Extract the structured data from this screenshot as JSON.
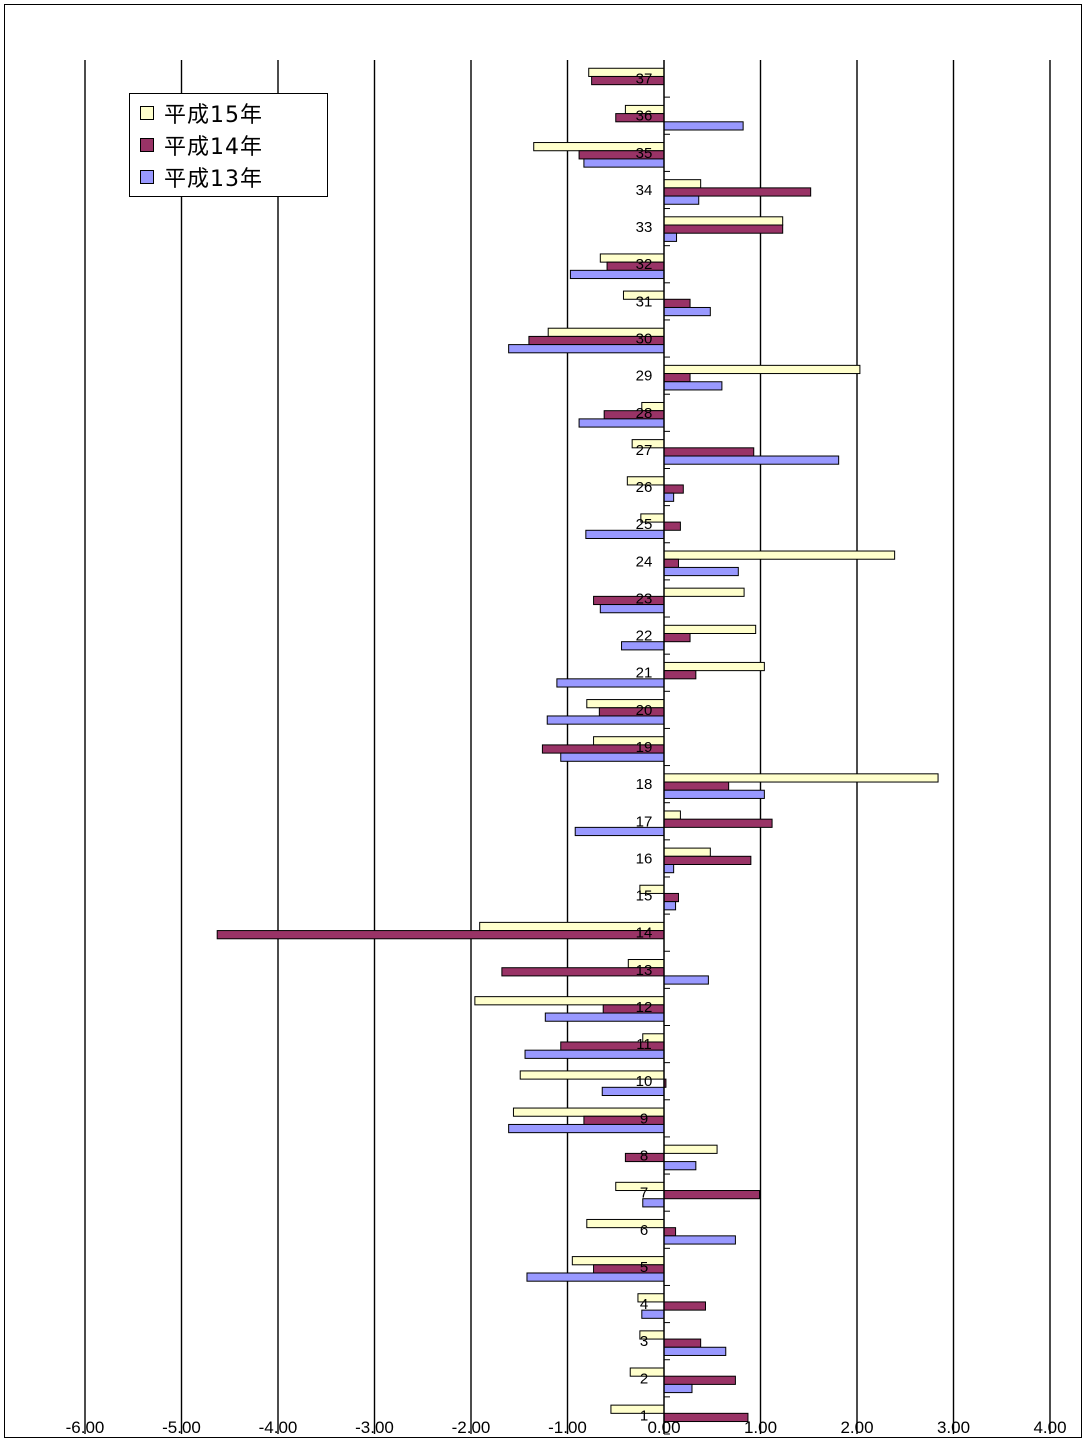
{
  "chart_data": {
    "type": "bar",
    "orientation": "horizontal",
    "xlim": [
      -6,
      4
    ],
    "x_ticks": [
      "-6.00",
      "-5.00",
      "-4.00",
      "-3.00",
      "-2.00",
      "-1.00",
      "0.00",
      "1.00",
      "2.00",
      "3.00",
      "4.00"
    ],
    "grid": "vertical",
    "legend_placement": "top-left",
    "categories": [
      "1",
      "2",
      "3",
      "4",
      "5",
      "6",
      "7",
      "8",
      "9",
      "10",
      "11",
      "12",
      "13",
      "14",
      "15",
      "16",
      "17",
      "18",
      "19",
      "20",
      "21",
      "22",
      "23",
      "24",
      "25",
      "26",
      "27",
      "28",
      "29",
      "30",
      "31",
      "32",
      "33",
      "34",
      "35",
      "36",
      "37"
    ],
    "series": [
      {
        "name": "平成15年",
        "color": "#FFFFCC",
        "values": [
          -0.55,
          -0.35,
          -0.25,
          -0.27,
          -0.95,
          -0.8,
          -0.5,
          0.55,
          -1.56,
          -1.49,
          -0.22,
          -1.96,
          -0.37,
          -1.91,
          -0.25,
          0.48,
          0.17,
          2.84,
          -0.73,
          -0.8,
          1.04,
          0.95,
          0.83,
          2.39,
          -0.24,
          -0.38,
          -0.33,
          -0.23,
          2.03,
          -1.2,
          -0.42,
          -0.66,
          1.23,
          0.38,
          -1.35,
          -0.4,
          -0.78
        ]
      },
      {
        "name": "平成14年",
        "color": "#993366",
        "values": [
          0.87,
          0.74,
          0.38,
          0.43,
          -0.73,
          0.12,
          0.99,
          -0.4,
          -0.83,
          0.02,
          -1.07,
          -0.63,
          -1.68,
          -4.63,
          0.15,
          0.9,
          1.12,
          0.67,
          -1.26,
          -0.67,
          0.33,
          0.27,
          -0.73,
          0.15,
          0.17,
          0.2,
          0.93,
          -0.62,
          0.27,
          -1.4,
          0.27,
          -0.59,
          1.23,
          1.52,
          -0.88,
          -0.5,
          -0.75
        ]
      },
      {
        "name": "平成13年",
        "color": "#9999FF",
        "values": [
          0.0,
          0.29,
          0.64,
          -0.23,
          -1.42,
          0.74,
          -0.22,
          0.33,
          -1.61,
          -0.64,
          -1.44,
          -1.23,
          0.46,
          0.0,
          0.12,
          0.1,
          -0.92,
          1.04,
          -1.07,
          -1.21,
          -1.11,
          -0.44,
          -0.66,
          0.77,
          -0.81,
          0.1,
          1.81,
          -0.88,
          0.6,
          -1.61,
          0.48,
          -0.97,
          0.13,
          0.36,
          -0.83,
          0.82,
          0.0
        ]
      }
    ]
  },
  "legend": {
    "items": [
      "平成15年",
      "平成14年",
      "平成13年"
    ]
  }
}
